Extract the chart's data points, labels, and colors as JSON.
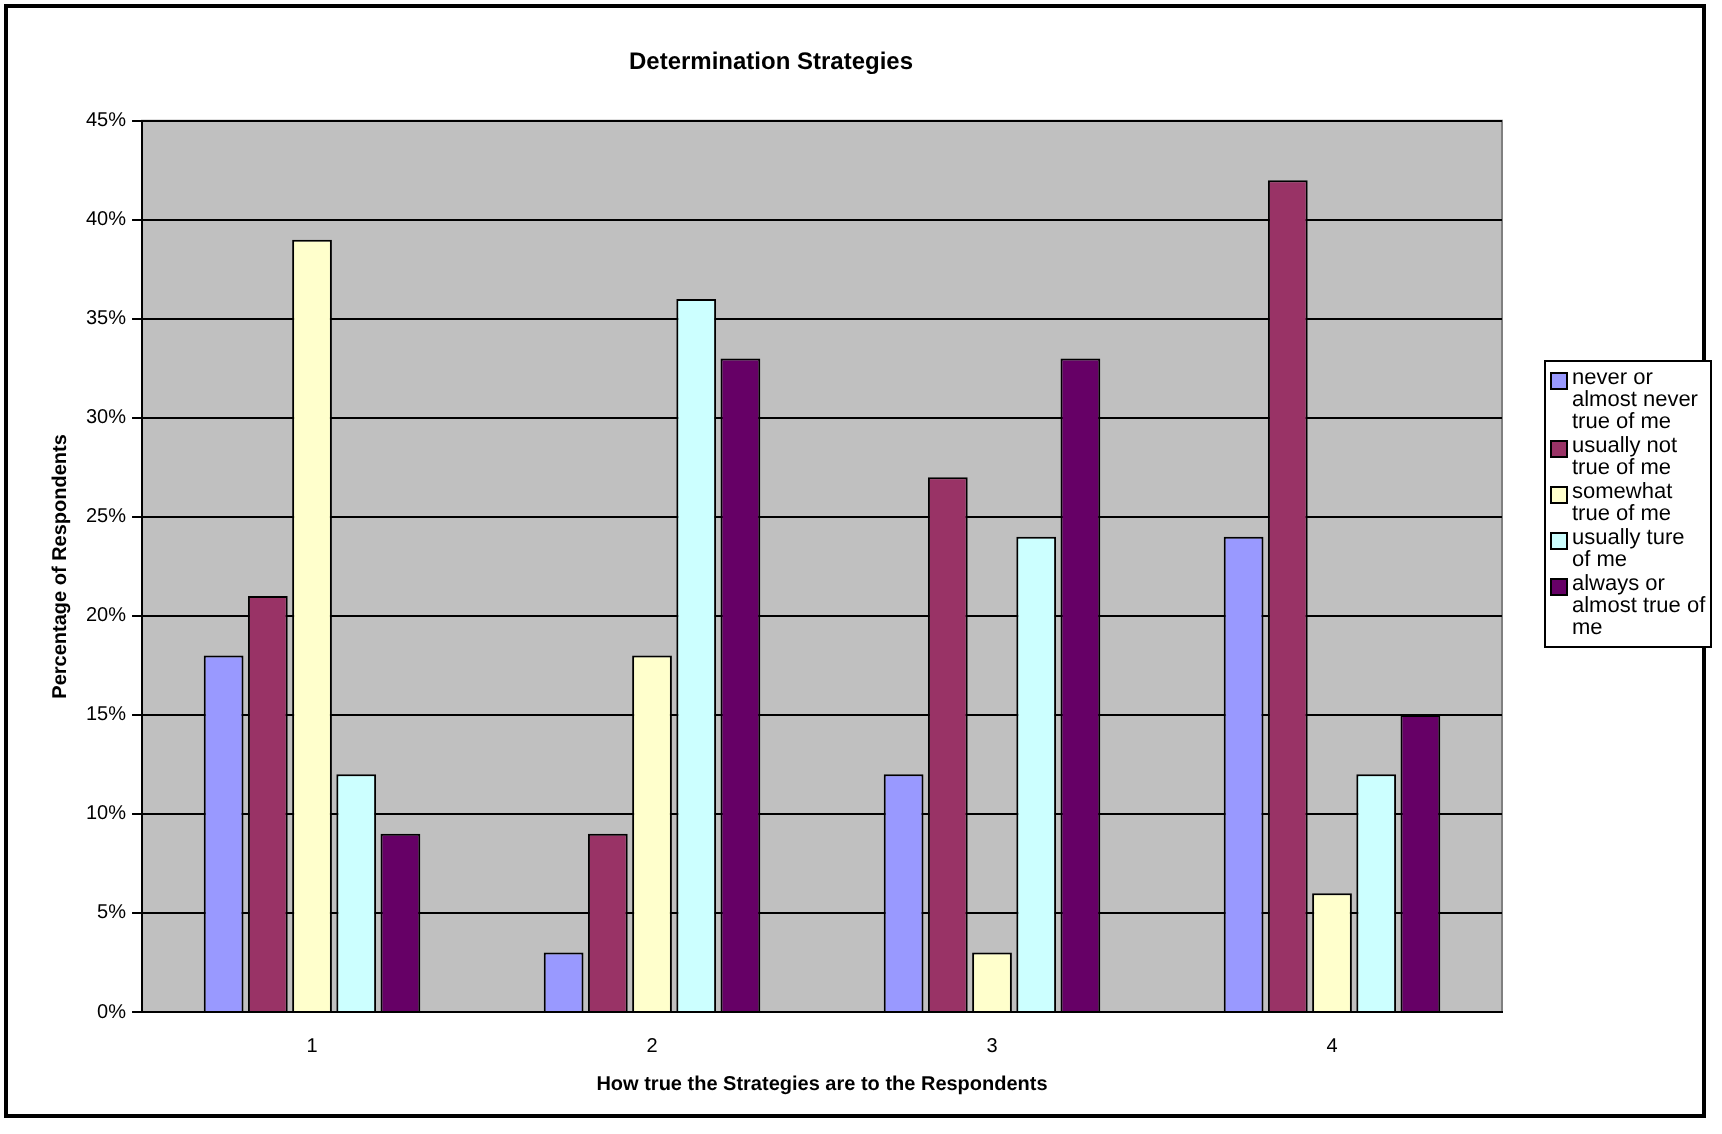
{
  "chart_data": {
    "type": "bar",
    "title": "Determination Strategies",
    "xlabel": "How true the Strategies are to the Respondents",
    "ylabel": "Percentage of Respondents",
    "categories": [
      "1",
      "2",
      "3",
      "4"
    ],
    "series": [
      {
        "name": "never or almost never true of me",
        "color": "#9999ff",
        "values": [
          18,
          3,
          12,
          24
        ]
      },
      {
        "name": "usually not true of me",
        "color": "#993366",
        "values": [
          21,
          9,
          27,
          42
        ]
      },
      {
        "name": "somewhat true of me",
        "color": "#ffffcc",
        "values": [
          39,
          18,
          3,
          6
        ]
      },
      {
        "name": "usually ture of me",
        "color": "#ccffff",
        "values": [
          12,
          36,
          24,
          12
        ]
      },
      {
        "name": "always or almost true of me",
        "color": "#660066",
        "values": [
          9,
          33,
          33,
          15
        ]
      }
    ],
    "ylim": [
      0,
      45
    ],
    "yticks": [
      {
        "value": 0,
        "label": "0%"
      },
      {
        "value": 5,
        "label": "5%"
      },
      {
        "value": 10,
        "label": "10%"
      },
      {
        "value": 15,
        "label": "15%"
      },
      {
        "value": 20,
        "label": "20%"
      },
      {
        "value": 25,
        "label": "25%"
      },
      {
        "value": 30,
        "label": "30%"
      },
      {
        "value": 35,
        "label": "35%"
      },
      {
        "value": 40,
        "label": "40%"
      },
      {
        "value": 45,
        "label": "45%"
      }
    ],
    "grid": "y",
    "legend": "right"
  }
}
